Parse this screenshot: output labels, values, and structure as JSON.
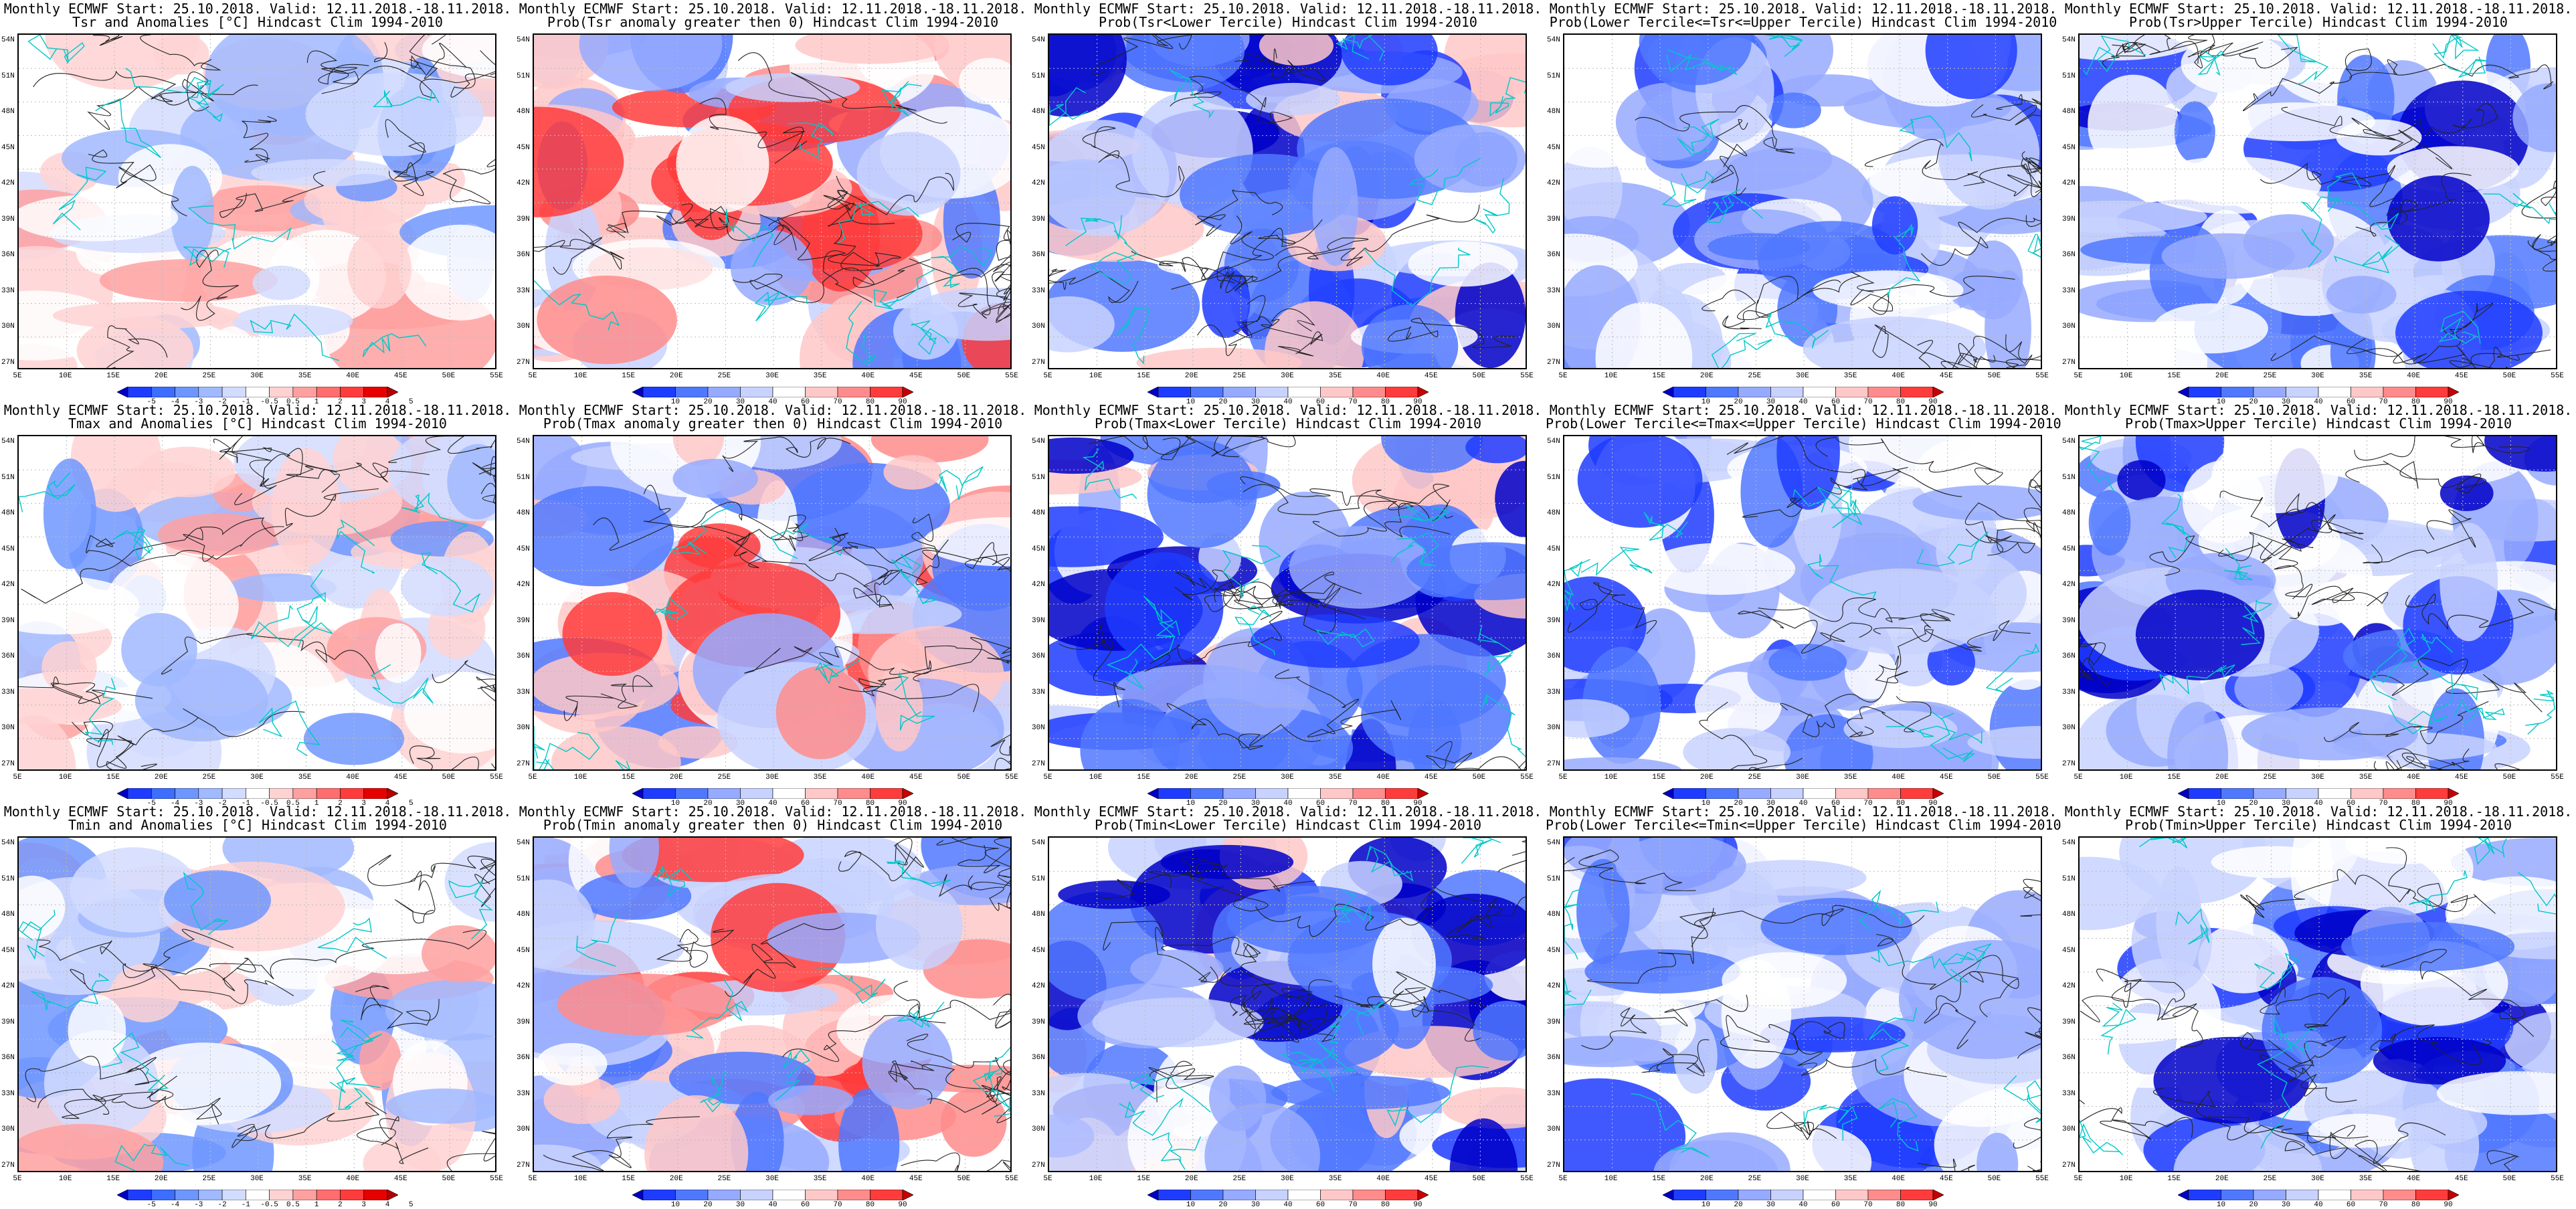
{
  "header_common": "Monthly ECMWF Start: 25.10.2018. Valid: 12.11.2018.-18.11.2018.",
  "lat_labels": [
    "54N",
    "51N",
    "48N",
    "45N",
    "42N",
    "39N",
    "36N",
    "33N",
    "30N",
    "27N"
  ],
  "lon_labels": [
    "5E",
    "10E",
    "15E",
    "20E",
    "25E",
    "30E",
    "35E",
    "40E",
    "45E",
    "50E",
    "55E"
  ],
  "colorbars": {
    "anomaly": {
      "labels": [
        "-5",
        "-4",
        "-3",
        "-2",
        "-1",
        "-0.5",
        "0.5",
        "1",
        "2",
        "3",
        "4",
        "5"
      ],
      "colors": [
        "#0000c8",
        "#1e3cff",
        "#3c6eff",
        "#6e96ff",
        "#a0b9ff",
        "#d2dcff",
        "#ffffff",
        "#ffd2d2",
        "#ffa0a0",
        "#ff6e6e",
        "#ff3c3c",
        "#e60000",
        "#b40000"
      ]
    },
    "prob": {
      "labels": [
        "10",
        "20",
        "30",
        "40",
        "60",
        "70",
        "80",
        "90"
      ],
      "colors": [
        "#0000c8",
        "#1e3cff",
        "#5078ff",
        "#96aaff",
        "#c8d2ff",
        "#ffffff",
        "#ffc8c8",
        "#ff8c8c",
        "#ff3c3c",
        "#c80000"
      ]
    }
  },
  "panels": [
    {
      "id": "r1c1",
      "row": 0,
      "col": 0,
      "line1": "Monthly ECMWF Start: 25.10.2018. Valid: 12.11.2018.-18.11.2018.",
      "line2": "Tsr and Anomalies [°C] Hindcast Clim 1994-2010",
      "bar": "anomaly",
      "style": "anomaly"
    },
    {
      "id": "r1c2",
      "row": 0,
      "col": 1,
      "line1": "Monthly ECMWF Start: 25.10.2018. Valid: 12.11.2018.-18.11.2018.",
      "line2": "Prob(Tsr anomaly greater then 0) Hindcast Clim 1994-2010",
      "bar": "prob",
      "style": "warmprob"
    },
    {
      "id": "r1c3",
      "row": 0,
      "col": 2,
      "line1": "Monthly ECMWF Start: 25.10.2018. Valid: 12.11.2018.-18.11.2018.",
      "line2": "Prob(Tsr<Lower Tercile) Hindcast Clim 1994-2010",
      "bar": "prob",
      "style": "lower"
    },
    {
      "id": "r1c4",
      "row": 0,
      "col": 3,
      "line1": "Monthly ECMWF Start: 25.10.2018. Valid: 12.11.2018.-18.11.2018.",
      "line2": "Prob(Lower Tercile<=Tsr<=Upper Tercile) Hindcast Clim 1994-2010",
      "bar": "prob",
      "style": "middle"
    },
    {
      "id": "r1c5",
      "row": 0,
      "col": 4,
      "line1": "Monthly ECMWF Start: 25.10.2018. Valid: 12.11.2018.-18.11.2018.",
      "line2": "Prob(Tsr>Upper Tercile) Hindcast Clim 1994-2010",
      "bar": "prob",
      "style": "upper"
    },
    {
      "id": "r2c1",
      "row": 1,
      "col": 0,
      "line1": "Monthly ECMWF Start: 25.10.2018. Valid: 12.11.2018.-18.11.2018.",
      "line2": "Tmax and Anomalies [°C] Hindcast Clim 1994-2010",
      "bar": "anomaly",
      "style": "anomaly"
    },
    {
      "id": "r2c2",
      "row": 1,
      "col": 1,
      "line1": "Monthly ECMWF Start: 25.10.2018. Valid: 12.11.2018.-18.11.2018.",
      "line2": "Prob(Tmax anomaly greater then 0) Hindcast Clim 1994-2010",
      "bar": "prob",
      "style": "warmprob"
    },
    {
      "id": "r2c3",
      "row": 1,
      "col": 2,
      "line1": "Monthly ECMWF Start: 25.10.2018. Valid: 12.11.2018.-18.11.2018.",
      "line2": "Prob(Tmax<Lower Tercile) Hindcast Clim 1994-2010",
      "bar": "prob",
      "style": "lower"
    },
    {
      "id": "r2c4",
      "row": 1,
      "col": 3,
      "line1": "Monthly ECMWF Start: 25.10.2018. Valid: 12.11.2018.-18.11.2018.",
      "line2": "Prob(Lower Tercile<=Tmax<=Upper Tercile) Hindcast Clim 1994-2010",
      "bar": "prob",
      "style": "middle"
    },
    {
      "id": "r2c5",
      "row": 1,
      "col": 4,
      "line1": "Monthly ECMWF Start: 25.10.2018. Valid: 12.11.2018.-18.11.2018.",
      "line2": "Prob(Tmax>Upper Tercile) Hindcast Clim 1994-2010",
      "bar": "prob",
      "style": "upper"
    },
    {
      "id": "r3c1",
      "row": 2,
      "col": 0,
      "line1": "Monthly ECMWF Start: 25.10.2018. Valid: 12.11.2018.-18.11.2018.",
      "line2": "Tmin and Anomalies [°C] Hindcast Clim 1994-2010",
      "bar": "anomaly",
      "style": "anomaly"
    },
    {
      "id": "r3c2",
      "row": 2,
      "col": 1,
      "line1": "Monthly ECMWF Start: 25.10.2018. Valid: 12.11.2018.-18.11.2018.",
      "line2": "Prob(Tmin anomaly greater then 0) Hindcast Clim 1994-2010",
      "bar": "prob",
      "style": "warmprob"
    },
    {
      "id": "r3c3",
      "row": 2,
      "col": 2,
      "line1": "Monthly ECMWF Start: 25.10.2018. Valid: 12.11.2018.-18.11.2018.",
      "line2": "Prob(Tmin<Lower Tercile) Hindcast Clim 1994-2010",
      "bar": "prob",
      "style": "lower"
    },
    {
      "id": "r3c4",
      "row": 2,
      "col": 3,
      "line1": "Monthly ECMWF Start: 25.10.2018. Valid: 12.11.2018.-18.11.2018.",
      "line2": "Prob(Lower Tercile<=Tmin<=Upper Tercile) Hindcast Clim 1994-2010",
      "bar": "prob",
      "style": "middle"
    },
    {
      "id": "r3c5",
      "row": 2,
      "col": 4,
      "line1": "Monthly ECMWF Start: 25.10.2018. Valid: 12.11.2018.-18.11.2018.",
      "line2": "Prob(Tmin>Upper Tercile) Hindcast Clim 1994-2010",
      "bar": "prob",
      "style": "upper"
    }
  ]
}
